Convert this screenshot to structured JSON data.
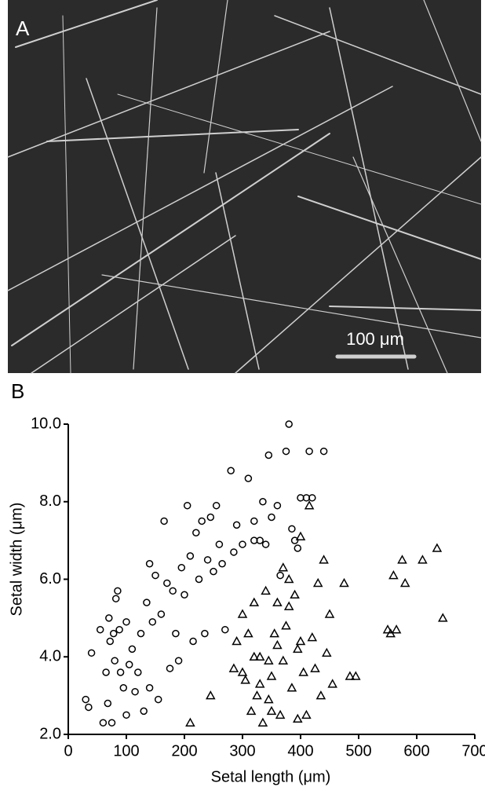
{
  "panel_a": {
    "label": "A",
    "scale_bar": "100 μm"
  },
  "chart_data": {
    "type": "scatter",
    "panel_label": "B",
    "x_label": "Setal length (μm)",
    "y_label": "Setal width (μm)",
    "xlim": [
      0,
      700
    ],
    "ylim": [
      2,
      10
    ],
    "xticks": [
      0,
      100,
      200,
      300,
      400,
      500,
      600,
      700
    ],
    "yticks": [
      {
        "value": 2,
        "label": "2.0"
      },
      {
        "value": 4,
        "label": "4.0"
      },
      {
        "value": 6,
        "label": "6.0"
      },
      {
        "value": 8,
        "label": "8.0"
      },
      {
        "value": 10,
        "label": "10.0"
      }
    ],
    "series": [
      {
        "marker": "circle",
        "color": "#000000",
        "x": [
          30,
          35,
          40,
          55,
          60,
          65,
          68,
          70,
          72,
          75,
          78,
          80,
          82,
          85,
          88,
          90,
          95,
          100,
          100,
          105,
          110,
          115,
          120,
          125,
          130,
          135,
          140,
          140,
          145,
          150,
          155,
          160,
          165,
          170,
          175,
          180,
          185,
          190,
          195,
          200,
          205,
          210,
          215,
          220,
          225,
          230,
          235,
          240,
          245,
          250,
          255,
          260,
          265,
          270,
          280,
          285,
          290,
          300,
          310,
          320,
          330,
          340,
          345,
          350,
          360,
          365,
          375,
          380,
          385,
          390,
          400,
          410,
          415,
          420,
          440,
          395,
          320,
          335
        ],
        "values": [
          2.9,
          2.7,
          4.1,
          4.7,
          2.3,
          3.6,
          2.8,
          5.0,
          4.4,
          2.3,
          4.6,
          3.9,
          5.5,
          5.7,
          4.7,
          3.6,
          3.2,
          4.9,
          2.5,
          3.8,
          4.2,
          3.1,
          3.6,
          4.6,
          2.6,
          5.4,
          6.4,
          3.2,
          4.9,
          6.1,
          2.9,
          5.1,
          7.5,
          5.9,
          3.7,
          5.7,
          4.6,
          3.9,
          6.3,
          5.6,
          7.9,
          6.6,
          4.4,
          7.2,
          6.0,
          7.5,
          4.6,
          6.5,
          7.6,
          6.2,
          7.9,
          6.9,
          6.4,
          4.7,
          8.8,
          6.7,
          7.4,
          6.9,
          8.6,
          7.0,
          7.0,
          6.9,
          9.2,
          7.6,
          7.9,
          6.1,
          9.3,
          10.0,
          7.3,
          7.0,
          8.1,
          8.1,
          9.3,
          8.1,
          9.3,
          6.8,
          7.5,
          8.0
        ]
      },
      {
        "marker": "triangle",
        "color": "#000000",
        "x": [
          210,
          245,
          285,
          290,
          300,
          305,
          310,
          315,
          320,
          325,
          330,
          335,
          340,
          345,
          350,
          355,
          360,
          365,
          370,
          375,
          380,
          385,
          390,
          395,
          400,
          405,
          410,
          415,
          420,
          425,
          430,
          440,
          445,
          450,
          455,
          475,
          485,
          495,
          550,
          555,
          560,
          565,
          575,
          580,
          610,
          635,
          645,
          435,
          395,
          360,
          330,
          380,
          350,
          320,
          300,
          400,
          370,
          345
        ],
        "values": [
          2.3,
          3.0,
          3.7,
          4.4,
          5.1,
          3.4,
          4.6,
          2.6,
          5.4,
          3.0,
          4.0,
          2.3,
          5.7,
          2.9,
          3.5,
          4.6,
          5.4,
          2.5,
          3.9,
          4.8,
          6.0,
          3.2,
          5.6,
          4.2,
          7.1,
          3.6,
          2.5,
          7.9,
          4.5,
          3.7,
          5.9,
          6.5,
          4.1,
          5.1,
          3.3,
          5.9,
          3.5,
          3.5,
          4.7,
          4.6,
          6.1,
          4.7,
          6.5,
          5.9,
          6.5,
          6.8,
          5.0,
          3.0,
          2.4,
          4.3,
          3.3,
          5.3,
          2.6,
          4.0,
          3.6,
          4.4,
          6.3,
          3.9
        ]
      }
    ]
  }
}
